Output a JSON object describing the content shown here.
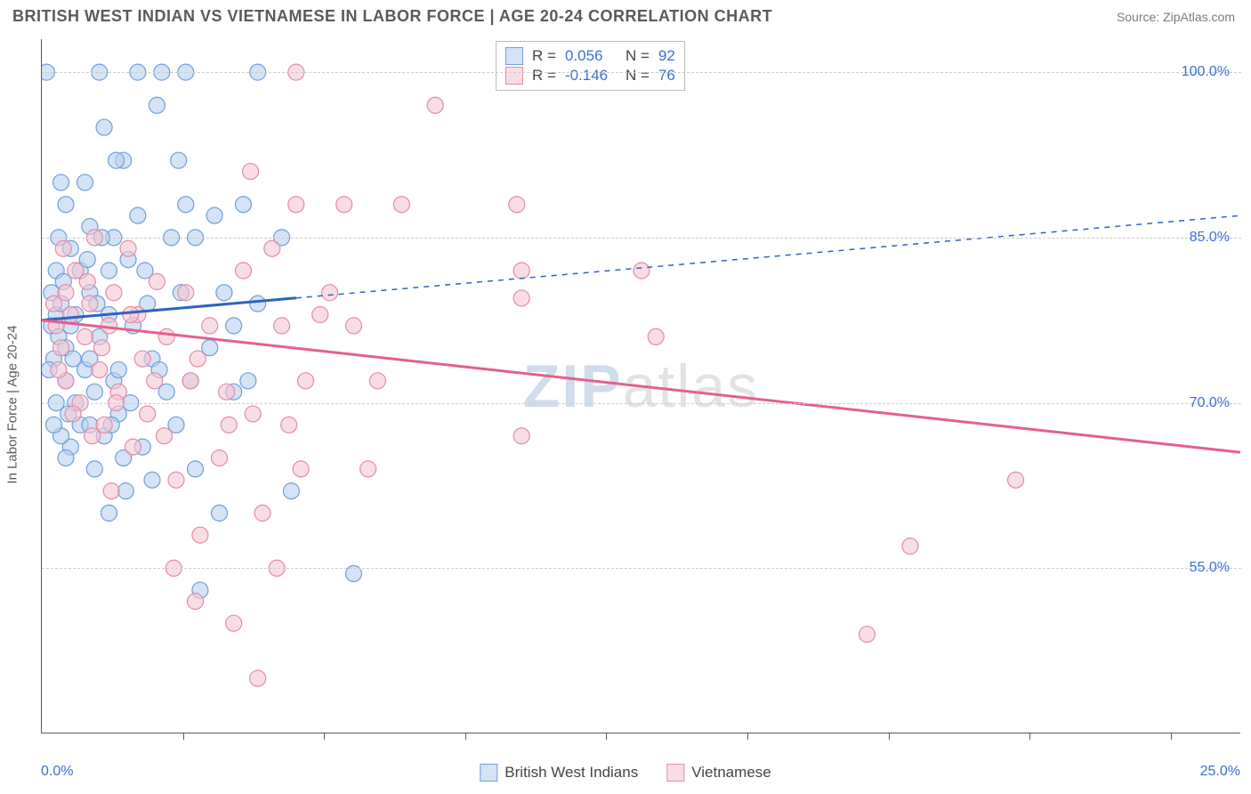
{
  "header": {
    "title": "BRITISH WEST INDIAN VS VIETNAMESE IN LABOR FORCE | AGE 20-24 CORRELATION CHART",
    "source": "Source: ZipAtlas.com"
  },
  "chart": {
    "type": "scatter",
    "ylabel": "In Labor Force | Age 20-24",
    "xlim": [
      0.0,
      25.0
    ],
    "ylim": [
      40.0,
      103.0
    ],
    "x_left_label": "0.0%",
    "x_right_label": "25.0%",
    "y_ticks": [
      {
        "value": 55.0,
        "label": "55.0%"
      },
      {
        "value": 70.0,
        "label": "70.0%"
      },
      {
        "value": 85.0,
        "label": "85.0%"
      },
      {
        "value": 100.0,
        "label": "100.0%"
      }
    ],
    "x_tick_positions": [
      2.94,
      5.88,
      8.82,
      11.76,
      14.7,
      17.65,
      20.59,
      23.53
    ],
    "background_color": "#ffffff",
    "grid_color": "#cccccc",
    "marker_radius": 9,
    "marker_stroke_width": 1.2,
    "watermark": {
      "zip": "ZIP",
      "atlas": "atlas"
    },
    "series": {
      "bwi": {
        "label": "British West Indians",
        "fill_color": "#b8d0ee",
        "stroke_color": "#6f9fd8",
        "fill_opacity": 0.6,
        "line_color": "#2e62c0",
        "R": "0.056",
        "N": "92",
        "trend": {
          "x1": 0,
          "y1": 77.5,
          "x2": 25,
          "y2": 87.0,
          "solid_until_x": 5.3
        },
        "points": [
          [
            0.2,
            77
          ],
          [
            0.3,
            78
          ],
          [
            0.2,
            80
          ],
          [
            0.35,
            76
          ],
          [
            0.25,
            74
          ],
          [
            0.3,
            82
          ],
          [
            0.1,
            100
          ],
          [
            0.5,
            75
          ],
          [
            0.4,
            79
          ],
          [
            0.6,
            77
          ],
          [
            0.5,
            72
          ],
          [
            0.7,
            70
          ],
          [
            0.6,
            84
          ],
          [
            0.4,
            90
          ],
          [
            0.8,
            68
          ],
          [
            0.9,
            73
          ],
          [
            1.0,
            80
          ],
          [
            1.0,
            86
          ],
          [
            1.1,
            71
          ],
          [
            1.1,
            64
          ],
          [
            1.2,
            76
          ],
          [
            1.2,
            100
          ],
          [
            1.3,
            67
          ],
          [
            1.3,
            95
          ],
          [
            1.4,
            78
          ],
          [
            1.4,
            60
          ],
          [
            1.5,
            85
          ],
          [
            1.5,
            72
          ],
          [
            1.6,
            73
          ],
          [
            1.7,
            65
          ],
          [
            1.7,
            92
          ],
          [
            1.8,
            83
          ],
          [
            1.9,
            77
          ],
          [
            2.0,
            87
          ],
          [
            2.0,
            100
          ],
          [
            2.1,
            66
          ],
          [
            2.2,
            79
          ],
          [
            2.3,
            74
          ],
          [
            2.4,
            97
          ],
          [
            2.5,
            100
          ],
          [
            2.6,
            71
          ],
          [
            2.7,
            85
          ],
          [
            2.8,
            68
          ],
          [
            2.9,
            80
          ],
          [
            3.0,
            88
          ],
          [
            3.0,
            100
          ],
          [
            3.2,
            64
          ],
          [
            3.2,
            85
          ],
          [
            3.3,
            53
          ],
          [
            3.5,
            75
          ],
          [
            3.6,
            87
          ],
          [
            3.8,
            80
          ],
          [
            4.0,
            71
          ],
          [
            4.0,
            77
          ],
          [
            4.2,
            88
          ],
          [
            4.3,
            72
          ],
          [
            4.5,
            79
          ],
          [
            4.5,
            100
          ],
          [
            5.0,
            85
          ],
          [
            5.2,
            62
          ],
          [
            6.5,
            54.5
          ],
          [
            1.0,
            68
          ],
          [
            0.9,
            90
          ],
          [
            0.8,
            82
          ],
          [
            1.4,
            82
          ],
          [
            1.6,
            69
          ],
          [
            2.3,
            63
          ],
          [
            0.7,
            78
          ],
          [
            0.6,
            66
          ],
          [
            0.5,
            88
          ],
          [
            0.45,
            81
          ],
          [
            0.55,
            69
          ],
          [
            1.0,
            74
          ],
          [
            1.15,
            79
          ],
          [
            1.85,
            70
          ],
          [
            2.15,
            82
          ],
          [
            2.45,
            73
          ],
          [
            0.35,
            85
          ],
          [
            0.95,
            83
          ],
          [
            1.25,
            85
          ],
          [
            1.75,
            62
          ],
          [
            0.65,
            74
          ],
          [
            1.45,
            68
          ],
          [
            3.1,
            72
          ],
          [
            0.3,
            70
          ],
          [
            0.4,
            67
          ],
          [
            0.15,
            73
          ],
          [
            3.7,
            60
          ],
          [
            0.25,
            68
          ],
          [
            0.5,
            65
          ],
          [
            1.55,
            92
          ],
          [
            2.85,
            92
          ]
        ]
      },
      "viet": {
        "label": "Vietnamese",
        "fill_color": "#f5c6d3",
        "stroke_color": "#e38ca5",
        "fill_opacity": 0.6,
        "line_color": "#e65f8a",
        "R": "-0.146",
        "N": "76",
        "trend": {
          "x1": 0,
          "y1": 77.5,
          "x2": 25,
          "y2": 65.5,
          "solid_until_x": 25
        },
        "points": [
          [
            0.3,
            77
          ],
          [
            0.4,
            75
          ],
          [
            0.5,
            80
          ],
          [
            0.5,
            72
          ],
          [
            0.6,
            78
          ],
          [
            0.7,
            82
          ],
          [
            0.8,
            70
          ],
          [
            0.9,
            76
          ],
          [
            1.0,
            79
          ],
          [
            1.1,
            85
          ],
          [
            1.2,
            73
          ],
          [
            1.3,
            68
          ],
          [
            1.4,
            77
          ],
          [
            1.5,
            80
          ],
          [
            1.6,
            71
          ],
          [
            1.8,
            84
          ],
          [
            1.9,
            66
          ],
          [
            2.0,
            78
          ],
          [
            2.1,
            74
          ],
          [
            2.2,
            69
          ],
          [
            2.4,
            81
          ],
          [
            2.6,
            76
          ],
          [
            2.8,
            63
          ],
          [
            3.0,
            80
          ],
          [
            3.1,
            72
          ],
          [
            3.3,
            58
          ],
          [
            3.5,
            77
          ],
          [
            3.7,
            65
          ],
          [
            3.9,
            68
          ],
          [
            4.2,
            82
          ],
          [
            4.4,
            69
          ],
          [
            4.5,
            45
          ],
          [
            4.6,
            60
          ],
          [
            4.9,
            55
          ],
          [
            5.0,
            77
          ],
          [
            5.3,
            88
          ],
          [
            5.3,
            100
          ],
          [
            5.5,
            72
          ],
          [
            5.8,
            78
          ],
          [
            6.0,
            80
          ],
          [
            6.3,
            88
          ],
          [
            6.5,
            77
          ],
          [
            6.8,
            64
          ],
          [
            7.0,
            72
          ],
          [
            7.5,
            88
          ],
          [
            8.2,
            97
          ],
          [
            9.9,
            88
          ],
          [
            10.0,
            82
          ],
          [
            10.0,
            67
          ],
          [
            10.0,
            79.5
          ],
          [
            12.5,
            82
          ],
          [
            12.8,
            76
          ],
          [
            17.2,
            49
          ],
          [
            18.1,
            57
          ],
          [
            20.3,
            63
          ],
          [
            0.35,
            73
          ],
          [
            0.65,
            69
          ],
          [
            0.95,
            81
          ],
          [
            1.25,
            75
          ],
          [
            1.55,
            70
          ],
          [
            1.85,
            78
          ],
          [
            2.35,
            72
          ],
          [
            2.55,
            67
          ],
          [
            3.25,
            74
          ],
          [
            3.85,
            71
          ],
          [
            4.35,
            91
          ],
          [
            4.8,
            84
          ],
          [
            5.15,
            68
          ],
          [
            0.25,
            79
          ],
          [
            0.45,
            84
          ],
          [
            1.05,
            67
          ],
          [
            1.45,
            62
          ],
          [
            2.75,
            55
          ],
          [
            4.0,
            50
          ],
          [
            3.2,
            52
          ],
          [
            5.4,
            64
          ]
        ]
      }
    },
    "top_legend": {
      "r_label": "R =",
      "n_label": "N ="
    },
    "bottom_legend_order": [
      "bwi",
      "viet"
    ]
  }
}
